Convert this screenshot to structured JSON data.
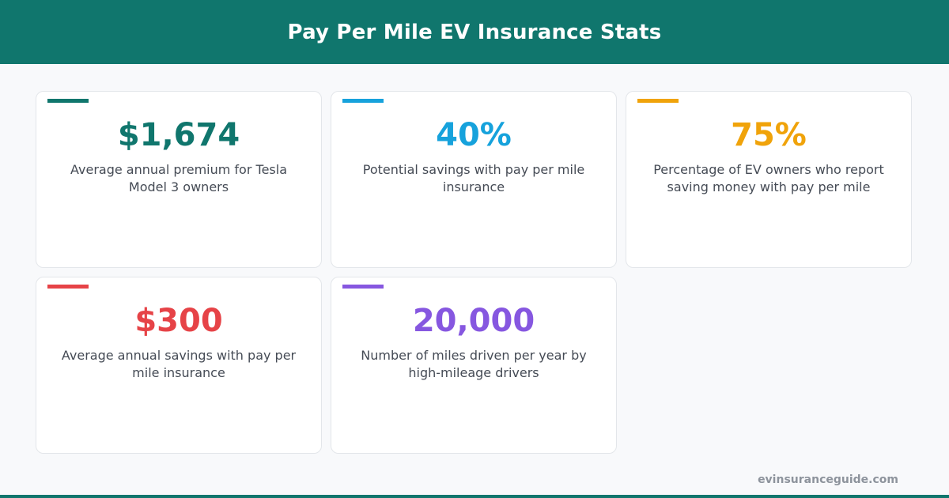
{
  "header": {
    "title": "Pay Per Mile EV Insurance Stats"
  },
  "stats": [
    {
      "value": "$1,674",
      "description": "Average annual premium for Tesla Model 3 owners",
      "color": "#10766d"
    },
    {
      "value": "40%",
      "description": "Potential savings with pay per mile insurance",
      "color": "#16a2dc"
    },
    {
      "value": "75%",
      "description": "Percentage of EV owners who report saving money with pay per mile",
      "color": "#f0a30a"
    },
    {
      "value": "$300",
      "description": "Average annual savings with pay per mile insurance",
      "color": "#e64347"
    },
    {
      "value": "20,000",
      "description": "Number of miles driven per year by high-mileage drivers",
      "color": "#8657e0"
    }
  ],
  "footer": {
    "site": "evinsuranceguide.com"
  }
}
